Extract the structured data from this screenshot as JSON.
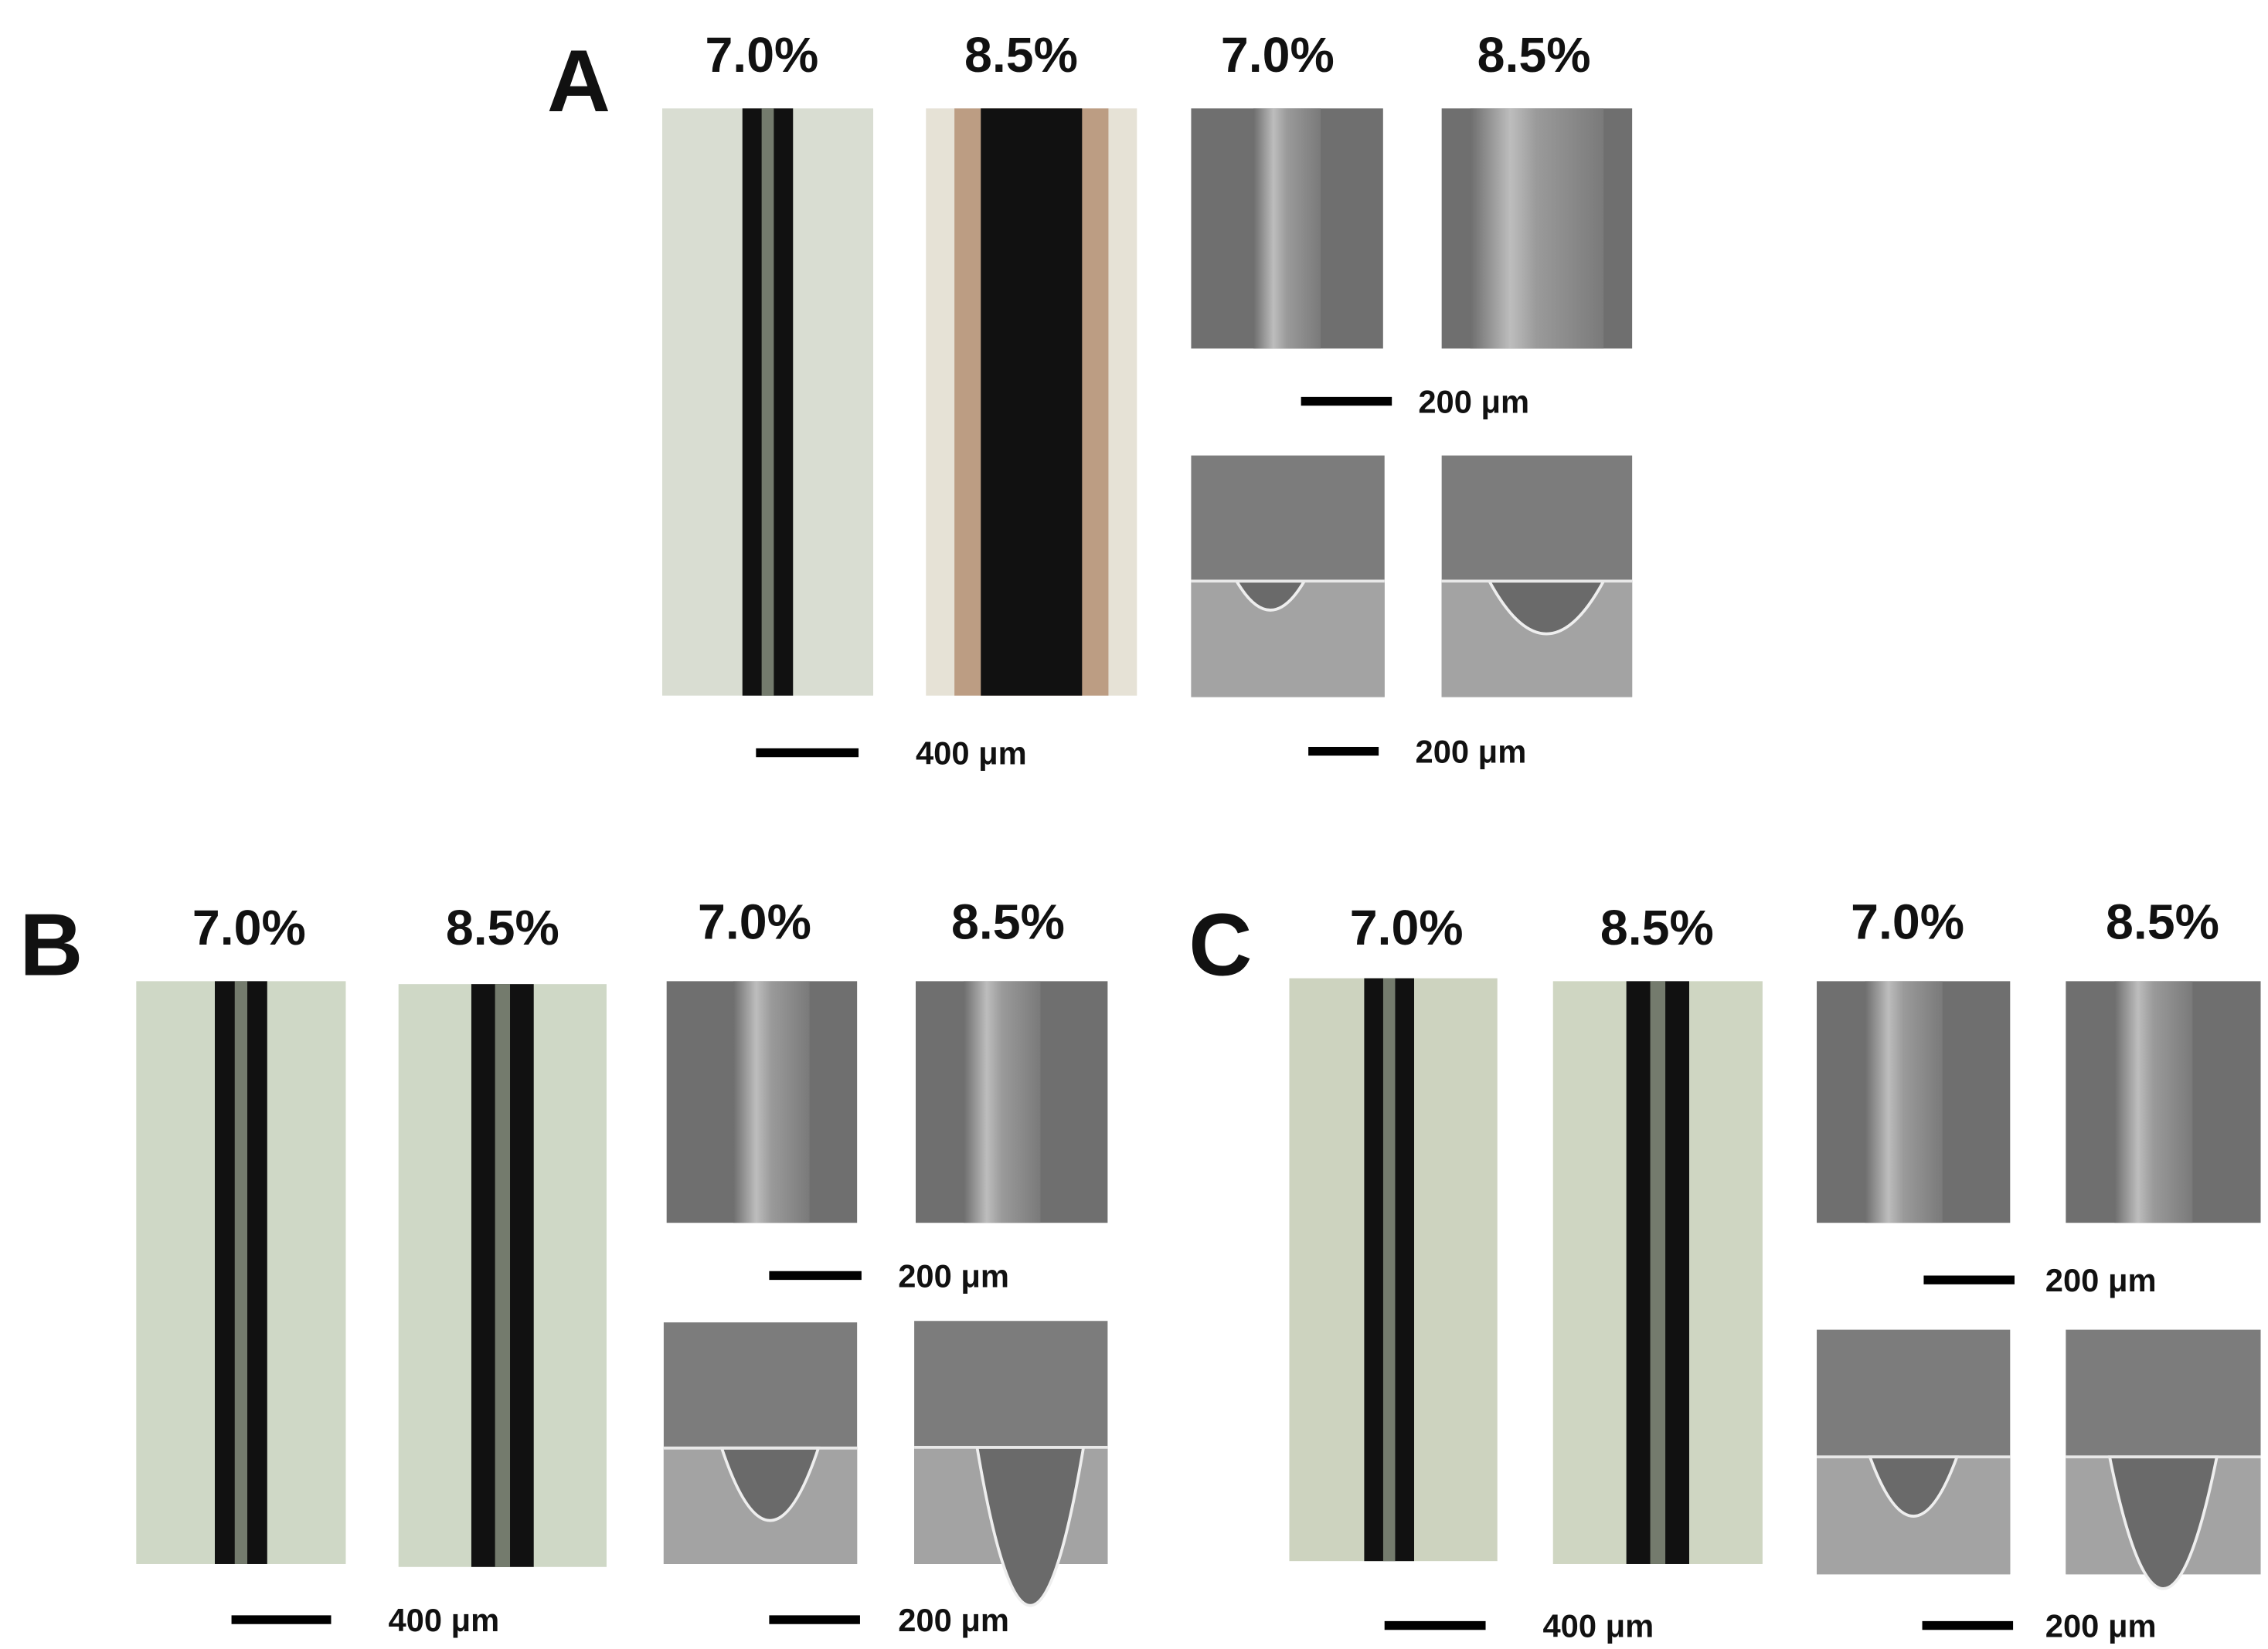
{
  "panels": [
    {
      "label": "A",
      "headers": [
        "7.0%",
        "8.5%",
        "7.0%",
        "8.5%"
      ],
      "scale_bars": [
        "200 μm",
        "400 μm",
        "200 μm"
      ]
    },
    {
      "label": "B",
      "headers": [
        "7.0%",
        "8.5%",
        "7.0%",
        "8.5%"
      ],
      "scale_bars": [
        "200 μm",
        "400 μm",
        "200 μm"
      ]
    },
    {
      "label": "C",
      "headers": [
        "7.0%",
        "8.5%",
        "7.0%",
        "8.5%"
      ],
      "scale_bars": [
        "200 μm",
        "400 μm",
        "200 μm"
      ]
    }
  ]
}
